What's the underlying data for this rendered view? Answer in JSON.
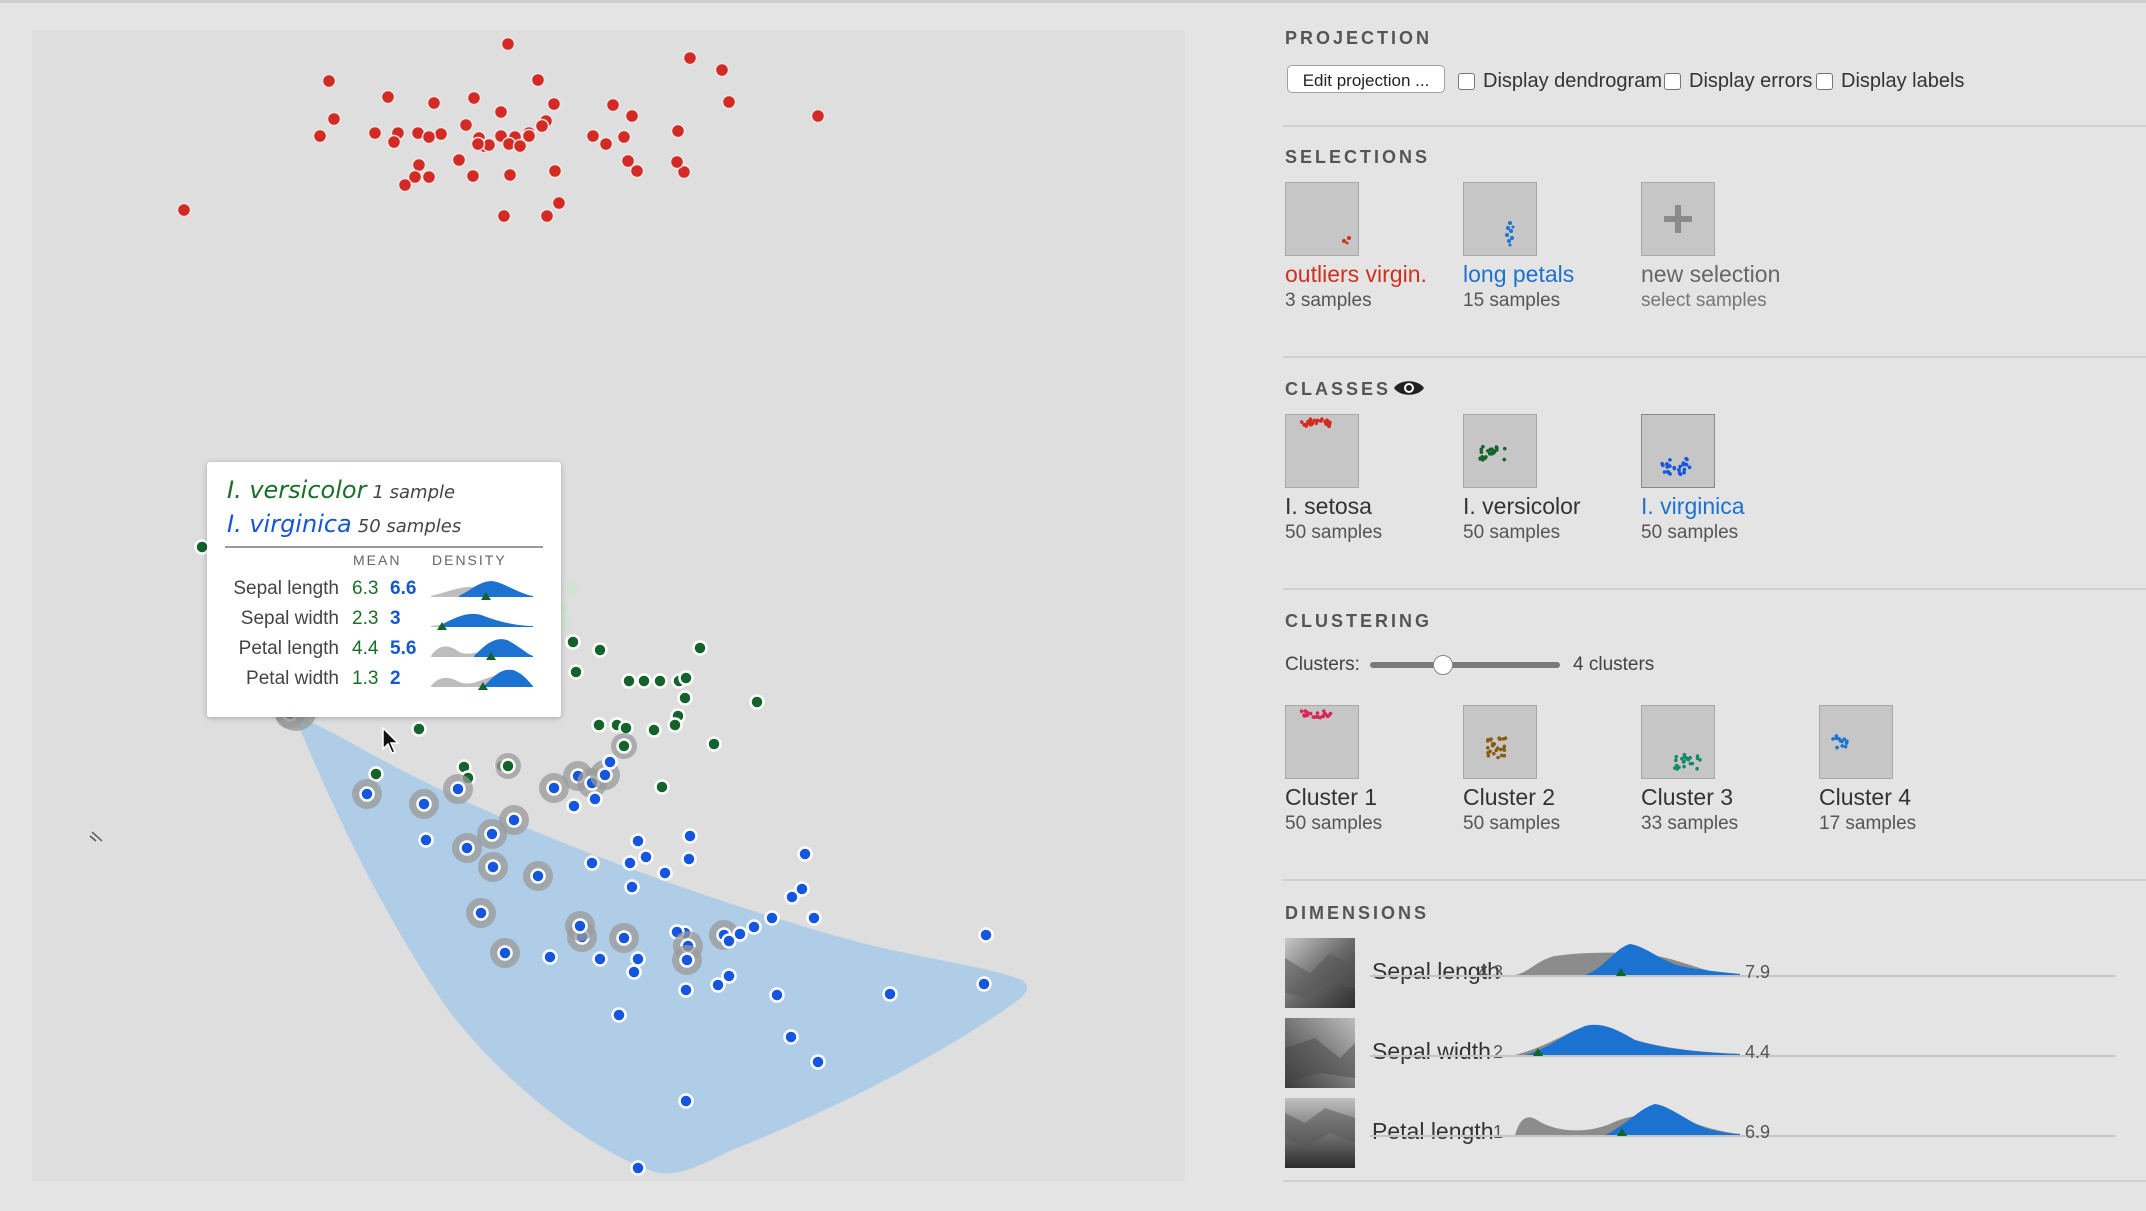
{
  "tooltip": {
    "classes": [
      {
        "name": "I. versicolor",
        "count": "1 sample"
      },
      {
        "name": "I. virginica",
        "count": "50 samples"
      }
    ],
    "col_mean": "MEAN",
    "col_density": "DENSITY",
    "rows": [
      {
        "dim": "Sepal length",
        "m1": "6.3",
        "m2": "6.6"
      },
      {
        "dim": "Sepal width",
        "m1": "2.3",
        "m2": "3"
      },
      {
        "dim": "Petal length",
        "m1": "4.4",
        "m2": "5.6"
      },
      {
        "dim": "Petal width",
        "m1": "1.3",
        "m2": "2"
      }
    ]
  },
  "projection": {
    "title": "PROJECTION",
    "edit_label": "Edit projection ...",
    "checkboxes": [
      "Display dendrogram",
      "Display errors",
      "Display labels"
    ]
  },
  "selections": {
    "title": "SELECTIONS",
    "items": [
      {
        "label": "outliers virgin.",
        "sub": "3 samples"
      },
      {
        "label": "long petals",
        "sub": "15 samples"
      },
      {
        "label": "new selection",
        "sub": "select samples"
      }
    ]
  },
  "classes": {
    "title": "CLASSES",
    "items": [
      {
        "label": "I. setosa",
        "sub": "50 samples"
      },
      {
        "label": "I. versicolor",
        "sub": "50 samples"
      },
      {
        "label": "I. virginica",
        "sub": "50 samples"
      }
    ]
  },
  "clustering": {
    "title": "CLUSTERING",
    "slider_label": "Clusters:",
    "slider_value": "4 clusters",
    "items": [
      {
        "label": "Cluster 1",
        "sub": "50 samples"
      },
      {
        "label": "Cluster 2",
        "sub": "50 samples"
      },
      {
        "label": "Cluster 3",
        "sub": "33 samples"
      },
      {
        "label": "Cluster 4",
        "sub": "17 samples"
      }
    ]
  },
  "dimensions": {
    "title": "DIMENSIONS",
    "items": [
      {
        "name": "Sepal length",
        "min": "4.3",
        "max": "7.9"
      },
      {
        "name": "Sepal width",
        "min": "2",
        "max": "4.4"
      },
      {
        "name": "Petal length",
        "min": "1",
        "max": "6.9"
      }
    ]
  },
  "colors": {
    "setosa": "#d42a24",
    "versicolor": "#13632a",
    "virginica": "#1456e0",
    "hull": "#afcde6",
    "selection_red": "#d0301f",
    "selection_blue": "#1c72d0"
  },
  "icons": [
    "eye-icon",
    "plus-icon",
    "pointer-cursor-icon"
  ]
}
